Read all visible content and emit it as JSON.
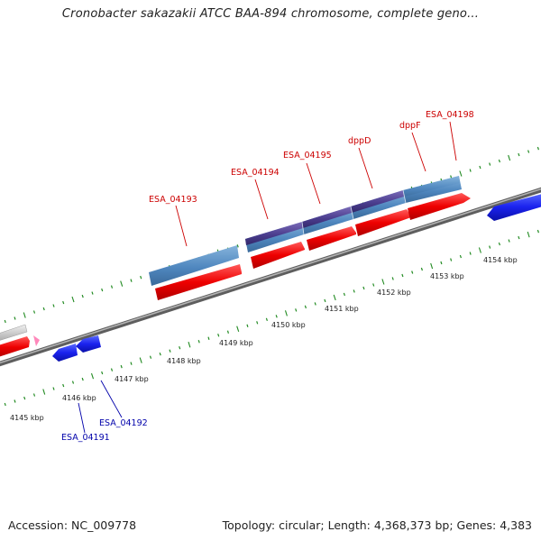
{
  "header": {
    "title": "Cronobacter sakazakii ATCC BAA-894 chromosome, complete geno..."
  },
  "footer": {
    "accession": "Accession: NC_009778",
    "summary": "Topology: circular; Length: 4,368,373 bp; Genes: 4,383"
  },
  "colors": {
    "forward_label": "#cc0000",
    "reverse_label": "#0000aa",
    "tick": "#228b22"
  },
  "scale_labels": [
    "4145 kbp",
    "4146 kbp",
    "4147 kbp",
    "4148 kbp",
    "4149 kbp",
    "4150 kbp",
    "4151 kbp",
    "4152 kbp",
    "4153 kbp",
    "4154 kbp"
  ],
  "gene_labels": {
    "forward": [
      "ESA_04193",
      "ESA_04194",
      "ESA_04195",
      "dppD",
      "dppF",
      "ESA_04198"
    ],
    "reverse": [
      "ESA_04191",
      "ESA_04192"
    ]
  }
}
